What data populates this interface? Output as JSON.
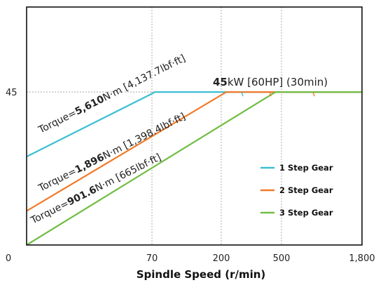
{
  "chart_data": {
    "type": "line",
    "xlabel": "Spindle Speed (r/min)",
    "ylabel": "",
    "x_tick_labels": [
      "0",
      "70",
      "200",
      "500",
      "1,800"
    ],
    "y_tick_labels": [
      "45"
    ],
    "power_label": {
      "bold": "45",
      "rest": "kW [60HP] (30min)"
    },
    "series": [
      {
        "name": "1 Step Gear",
        "color": "#3cbfd3",
        "torque_prefix": "Torque=",
        "torque_bold": "5,610",
        "torque_rest": "N·m [4,137.7lbf·ft]",
        "points": [
          [
            0,
            26
          ],
          [
            76,
            45
          ],
          [
            1800,
            45
          ]
        ]
      },
      {
        "name": "2 Step Gear",
        "color": "#f07a28",
        "torque_prefix": "Torque=",
        "torque_bold": "1,896",
        "torque_rest": "N·m [1,398.4lbf·ft]",
        "points": [
          [
            0,
            10
          ],
          [
            225,
            45
          ],
          [
            1800,
            45
          ]
        ]
      },
      {
        "name": "3 Step Gear",
        "color": "#72be44",
        "torque_prefix": "Torque=",
        "torque_bold": "901.6",
        "torque_rest": "N·m [665lbf·ft]",
        "points": [
          [
            0,
            0
          ],
          [
            470,
            45
          ],
          [
            1800,
            45
          ]
        ]
      }
    ],
    "ylim": [
      0,
      70
    ],
    "grid": "dotted reference lines at 45 kW and at 70, 200, 500 r/min",
    "legend_position": "center-right"
  }
}
